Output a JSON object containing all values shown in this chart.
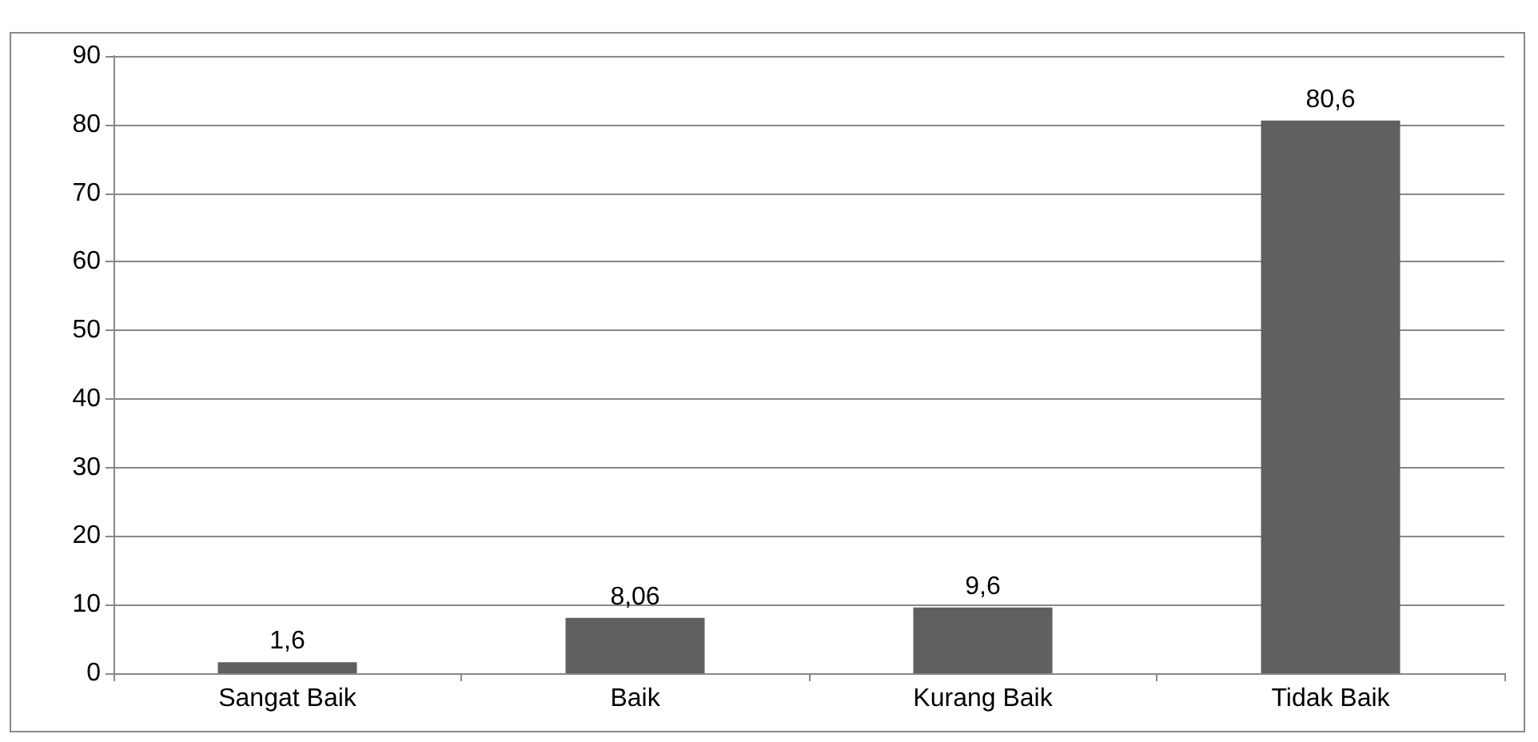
{
  "chart_data": {
    "type": "bar",
    "categories": [
      "Sangat Baik",
      "Baik",
      "Kurang Baik",
      "Tidak Baik"
    ],
    "values": [
      1.6,
      8.06,
      9.6,
      80.6
    ],
    "value_labels": [
      "1,6",
      "8,06",
      "9,6",
      "80,6"
    ],
    "color": "#606060",
    "ylim": [
      0,
      90
    ],
    "yticks": [
      0,
      10,
      20,
      30,
      40,
      50,
      60,
      70,
      80,
      90
    ],
    "grid": "y"
  }
}
